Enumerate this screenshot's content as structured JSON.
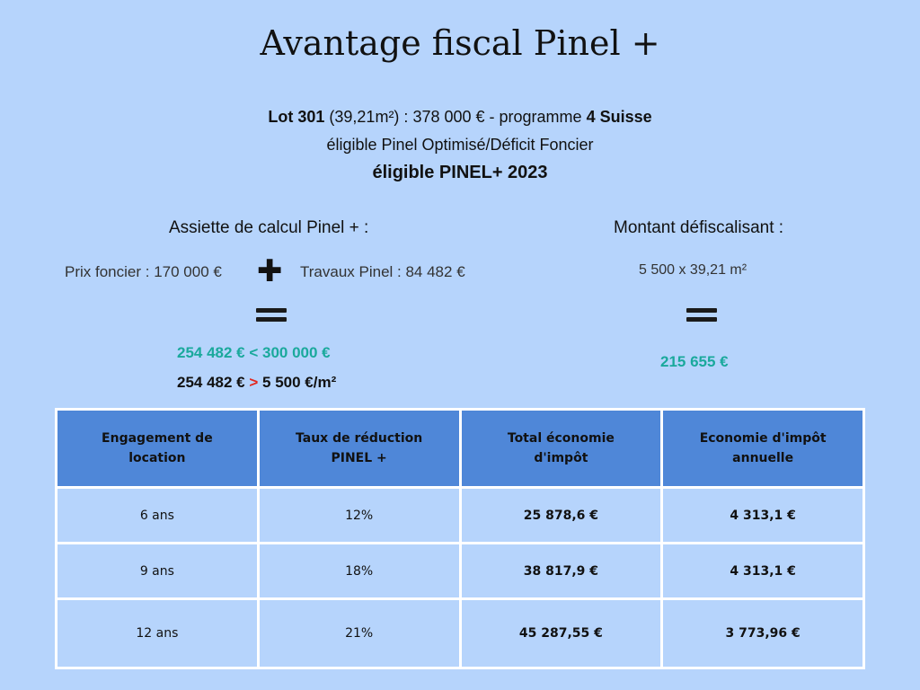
{
  "title": "Avantage fiscal Pinel +",
  "lot": {
    "label": "Lot 301",
    "surface": "(39,21m²) :",
    "prix": "378 000 € - programme",
    "programme": "4 Suisse",
    "eligibilite_1": "éligible Pinel Optimisé/Déficit Foncier",
    "eligibilite_2": "éligible PINEL+ 2023"
  },
  "assiette": {
    "heading": "Assiette de calcul Pinel + :",
    "prix_foncier": "Prix foncier : 170 000 €",
    "operator": "✚",
    "travaux": "Travaux Pinel : 84 482 €",
    "result_1": "254 482 € < 300 000 €",
    "result_2_a": "254 482 €",
    "result_2_op": ">",
    "result_2_b": "5 500 €/m²"
  },
  "montant": {
    "heading": "Montant défiscalisant :",
    "formule": "5 500 x 39,21 m²",
    "result": "215 655 €"
  },
  "colors": {
    "background": "#b6d4fc",
    "header": "#4f87d8",
    "accent_green": "#1aa99c",
    "accent_red": "#e3261d"
  },
  "table": {
    "headers": [
      "Engagement de location",
      "Taux de réduction PINEL +",
      "Total économie d'impôt",
      "Economie d'impôt annuelle"
    ],
    "rows": [
      [
        "6 ans",
        "12%",
        "25 878,6 €",
        "4 313,1 €"
      ],
      [
        "9 ans",
        "18%",
        "38 817,9 €",
        "4 313,1 €"
      ],
      [
        "12 ans",
        "21%",
        "45 287,55 €",
        "3 773,96 €"
      ]
    ]
  }
}
